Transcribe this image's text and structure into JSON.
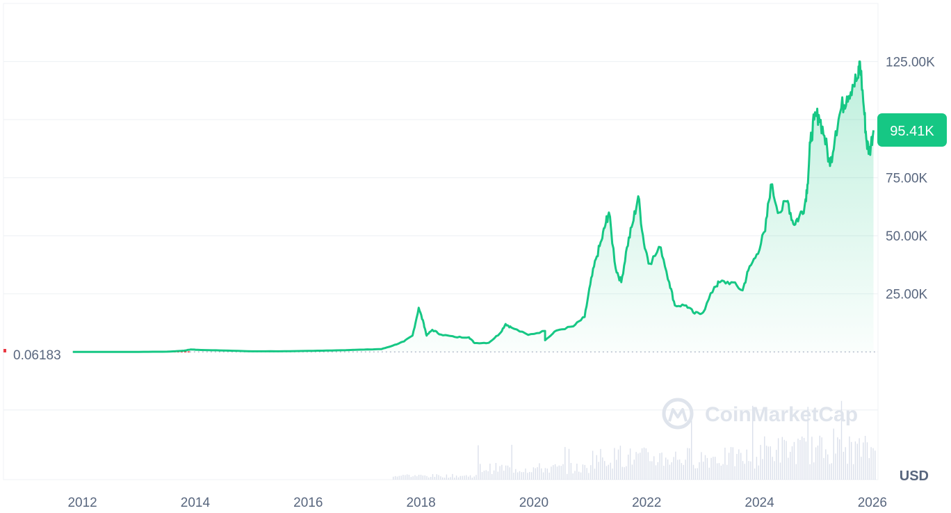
{
  "chart_data": {
    "type": "area",
    "title": "",
    "xlabel": "",
    "ylabel": "",
    "currency_label": "USD",
    "watermark_text": "CoinMarketCap",
    "start_price_label": "0.06183",
    "current_price_label": "95.41K",
    "current_price": 95410,
    "ylim": [
      -55000,
      150000
    ],
    "y_ticks": [
      {
        "value": 25000,
        "label": "25.00K"
      },
      {
        "value": 50000,
        "label": "50.00K"
      },
      {
        "value": 75000,
        "label": "75.00K"
      },
      {
        "value": 125000,
        "label": "125.00K"
      }
    ],
    "x_ticks": [
      {
        "value": 2012,
        "label": "2012"
      },
      {
        "value": 2014,
        "label": "2014"
      },
      {
        "value": 2016,
        "label": "2016"
      },
      {
        "value": 2018,
        "label": "2018"
      },
      {
        "value": 2020,
        "label": "2020"
      },
      {
        "value": 2022,
        "label": "2022"
      },
      {
        "value": 2024,
        "label": "2024"
      },
      {
        "value": 2026,
        "label": "2026"
      }
    ],
    "xlim": [
      2010.6,
      2026.1
    ],
    "grid": true,
    "colors": {
      "line": "#16c784",
      "fill_top": "#16c784",
      "start_segment": "#ea3943",
      "baseline_dotted": "#a6b0c3",
      "grid": "#eff2f5",
      "axis_text": "#58667e",
      "price_badge_bg": "#16c784",
      "price_badge_text": "#ffffff",
      "volume": "#cfd6e4",
      "watermark": "#dfe4ec"
    },
    "series": [
      {
        "points": [
          [
            2011.83,
            0.06
          ],
          [
            2012.5,
            7
          ],
          [
            2013.0,
            13
          ],
          [
            2013.5,
            90
          ],
          [
            2013.8,
            500
          ],
          [
            2013.92,
            1050
          ],
          [
            2014.1,
            800
          ],
          [
            2014.5,
            600
          ],
          [
            2015.0,
            250
          ],
          [
            2015.5,
            260
          ],
          [
            2016.0,
            420
          ],
          [
            2016.5,
            650
          ],
          [
            2017.0,
            1000
          ],
          [
            2017.3,
            1200
          ],
          [
            2017.5,
            2700
          ],
          [
            2017.7,
            4500
          ],
          [
            2017.85,
            7000
          ],
          [
            2017.96,
            19000
          ],
          [
            2018.05,
            12000
          ],
          [
            2018.1,
            7000
          ],
          [
            2018.2,
            9500
          ],
          [
            2018.35,
            7500
          ],
          [
            2018.6,
            6400
          ],
          [
            2018.85,
            6300
          ],
          [
            2018.95,
            3800
          ],
          [
            2019.2,
            3900
          ],
          [
            2019.4,
            8000
          ],
          [
            2019.5,
            12000
          ],
          [
            2019.6,
            10500
          ],
          [
            2019.9,
            7300
          ],
          [
            2020.2,
            9000
          ],
          [
            2020.2,
            5000
          ],
          [
            2020.4,
            9200
          ],
          [
            2020.7,
            11000
          ],
          [
            2020.9,
            15000
          ],
          [
            2021.0,
            29000
          ],
          [
            2021.1,
            40000
          ],
          [
            2021.2,
            48000
          ],
          [
            2021.28,
            56000
          ],
          [
            2021.33,
            60000
          ],
          [
            2021.45,
            36000
          ],
          [
            2021.55,
            30000
          ],
          [
            2021.65,
            45000
          ],
          [
            2021.75,
            55000
          ],
          [
            2021.85,
            67000
          ],
          [
            2021.95,
            47000
          ],
          [
            2022.05,
            38000
          ],
          [
            2022.25,
            45000
          ],
          [
            2022.4,
            30000
          ],
          [
            2022.5,
            20000
          ],
          [
            2022.7,
            20000
          ],
          [
            2022.85,
            16500
          ],
          [
            2023.0,
            17000
          ],
          [
            2023.2,
            28000
          ],
          [
            2023.3,
            30000
          ],
          [
            2023.5,
            30000
          ],
          [
            2023.7,
            26500
          ],
          [
            2023.8,
            35000
          ],
          [
            2023.95,
            42000
          ],
          [
            2024.1,
            52000
          ],
          [
            2024.2,
            72000
          ],
          [
            2024.35,
            60000
          ],
          [
            2024.5,
            65000
          ],
          [
            2024.6,
            55000
          ],
          [
            2024.7,
            58000
          ],
          [
            2024.8,
            63000
          ],
          [
            2024.85,
            72000
          ],
          [
            2024.9,
            90000
          ],
          [
            2024.97,
            100000
          ],
          [
            2025.05,
            102000
          ],
          [
            2025.15,
            93000
          ],
          [
            2025.25,
            80000
          ],
          [
            2025.35,
            95000
          ],
          [
            2025.45,
            105000
          ],
          [
            2025.55,
            110000
          ],
          [
            2025.65,
            115000
          ],
          [
            2025.75,
            118000
          ],
          [
            2025.78,
            125000
          ],
          [
            2025.85,
            105000
          ],
          [
            2025.9,
            90000
          ],
          [
            2025.95,
            86000
          ],
          [
            2026.02,
            95410
          ]
        ]
      }
    ]
  }
}
